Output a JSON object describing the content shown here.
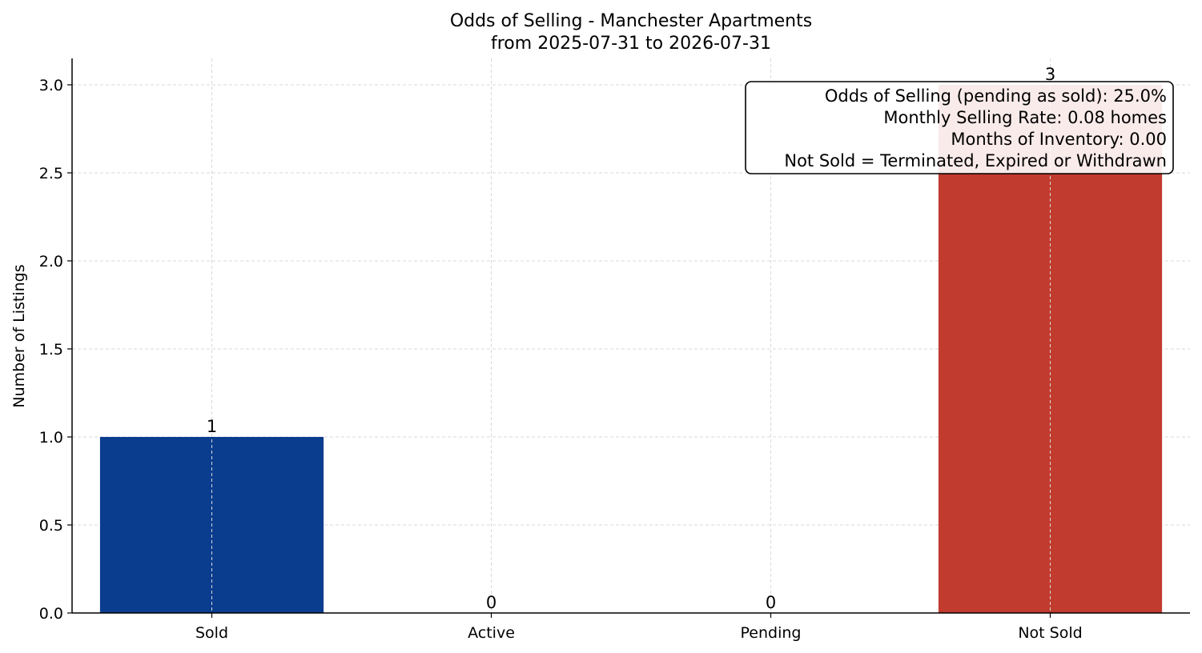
{
  "chart_data": {
    "type": "bar",
    "title": "Odds of Selling - Manchester Apartments",
    "subtitle": "from 2025-07-31 to 2026-07-31",
    "xlabel": "",
    "ylabel": "Number of Listings",
    "categories": [
      "Sold",
      "Active",
      "Pending",
      "Not Sold"
    ],
    "values": [
      1,
      0,
      0,
      3
    ],
    "data_labels": [
      "1",
      "0",
      "0",
      "3"
    ],
    "colors": [
      "#0b3d8f",
      "#0b3d8f",
      "#0b3d8f",
      "#c13b2e"
    ],
    "ylim": [
      0,
      3.15
    ],
    "yticks": [
      0.0,
      0.5,
      1.0,
      1.5,
      2.0,
      2.5,
      3.0
    ],
    "ytick_labels": [
      "0.0",
      "0.5",
      "1.0",
      "1.5",
      "2.0",
      "2.5",
      "3.0"
    ],
    "grid": true,
    "annotation_box": {
      "placement": "top-right",
      "lines": [
        "Odds of Selling (pending as sold): 25.0%",
        "Monthly Selling Rate: 0.08 homes",
        "Months of Inventory: 0.00",
        "Not Sold = Terminated, Expired or Withdrawn"
      ]
    }
  }
}
